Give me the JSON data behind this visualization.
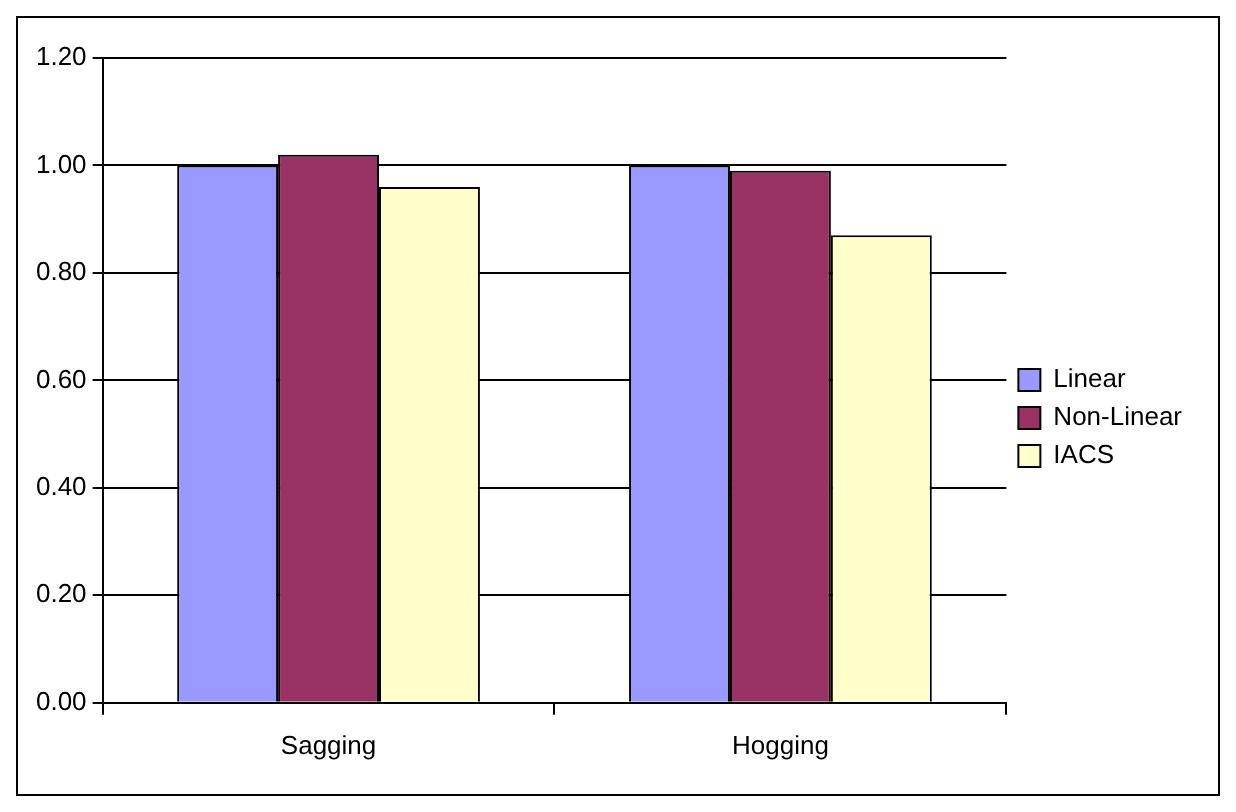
{
  "chart_data": {
    "type": "bar",
    "categories": [
      "Sagging",
      "Hogging"
    ],
    "series": [
      {
        "name": "Linear",
        "color": "#9999ff",
        "values": [
          1.0,
          1.0
        ]
      },
      {
        "name": "Non-Linear",
        "color": "#993366",
        "values": [
          1.02,
          0.99
        ]
      },
      {
        "name": "IACS",
        "color": "#ffffcc",
        "values": [
          0.96,
          0.87
        ]
      }
    ],
    "ylim": [
      0,
      1.2
    ],
    "yticks": [
      {
        "value": 0,
        "label": "0.00"
      },
      {
        "value": 0.2,
        "label": "0.20"
      },
      {
        "value": 0.4,
        "label": "0.40"
      },
      {
        "value": 0.6,
        "label": "0.60"
      },
      {
        "value": 0.8,
        "label": "0.80"
      },
      {
        "value": 1.0,
        "label": "1.00"
      },
      {
        "value": 1.2,
        "label": "1.20"
      }
    ],
    "grid": "y",
    "legend": "right"
  }
}
